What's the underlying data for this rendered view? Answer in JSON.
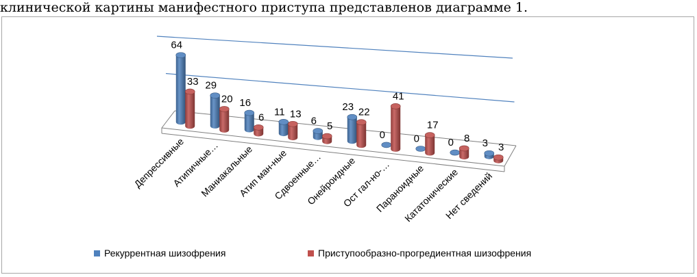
{
  "caption": "клинической картины манифестного приступа представленов диаграмме 1.",
  "chart_data": {
    "type": "bar",
    "style": "3d-cylinder",
    "categories": [
      "Депрессивные",
      "Атипичные…",
      "Маниакальные",
      "Атип ман-ные",
      "Сдвоенные…",
      "Онейроидные",
      "Ост гал-но-…",
      "Параноидные",
      "Кататонические",
      "Нет сведений"
    ],
    "series": [
      {
        "name": "Рекуррентная шизофрения",
        "color": "#4f81bd",
        "values": [
          64,
          29,
          16,
          11,
          6,
          23,
          0,
          0,
          0,
          3
        ]
      },
      {
        "name": "Приступообразно-прогредиентная шизофрения",
        "color": "#c0504d",
        "values": [
          33,
          20,
          6,
          13,
          5,
          22,
          41,
          17,
          8,
          3
        ]
      }
    ],
    "data_labels": [
      [
        "64",
        "29",
        "16",
        "11",
        "6",
        "23",
        "0",
        "0",
        "0",
        "3"
      ],
      [
        "33",
        "20",
        "6",
        "13",
        "5",
        "22",
        "41",
        "17",
        "8",
        "3"
      ]
    ],
    "ylim": [
      0,
      80
    ],
    "grid": true,
    "legend_position": "bottom"
  }
}
